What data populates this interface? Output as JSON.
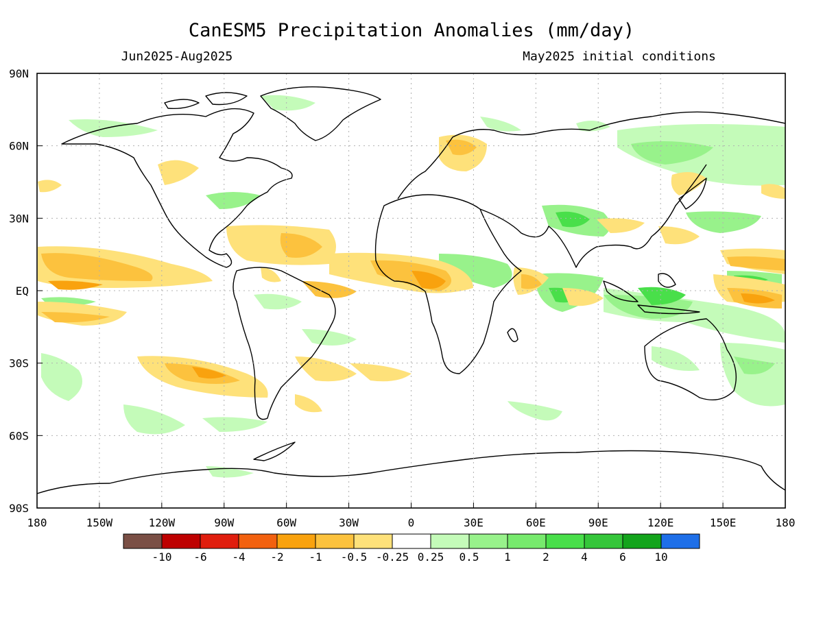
{
  "title": "CanESM5 Precipitation Anomalies (mm/day)",
  "subtitle_left": "Jun2025-Aug2025",
  "subtitle_right": "May2025 initial conditions",
  "lat_labels": [
    "90N",
    "60N",
    "30N",
    "EQ",
    "30S",
    "60S",
    "90S"
  ],
  "lon_labels": [
    "180",
    "150W",
    "120W",
    "90W",
    "60W",
    "30W",
    "0",
    "30E",
    "60E",
    "90E",
    "120E",
    "150E",
    "180"
  ],
  "colorbar": {
    "labels": [
      "-10",
      "-6",
      "-4",
      "-2",
      "-1",
      "-0.5",
      "-0.25",
      "0.25",
      "0.5",
      "1",
      "2",
      "4",
      "6",
      "10"
    ],
    "colors": [
      "#7a4f45",
      "#be0000",
      "#e01e0e",
      "#f2610f",
      "#f9a20e",
      "#fcc23e",
      "#fee17a",
      "#ffffff",
      "#c4fbb9",
      "#98f28b",
      "#77ea6d",
      "#49df4a",
      "#35c63a",
      "#13a41c",
      "#1e6fe8"
    ]
  },
  "colors": {
    "wet_light": "#c4fbb9",
    "wet_mid": "#98f28b",
    "wet_strong": "#49df4a",
    "dry_light": "#fee17a",
    "dry_mid": "#fcc23e",
    "dry_strong": "#f9a20e",
    "dry_max": "#f2610f",
    "grid": "#b0b0b0",
    "coast": "#000000"
  }
}
